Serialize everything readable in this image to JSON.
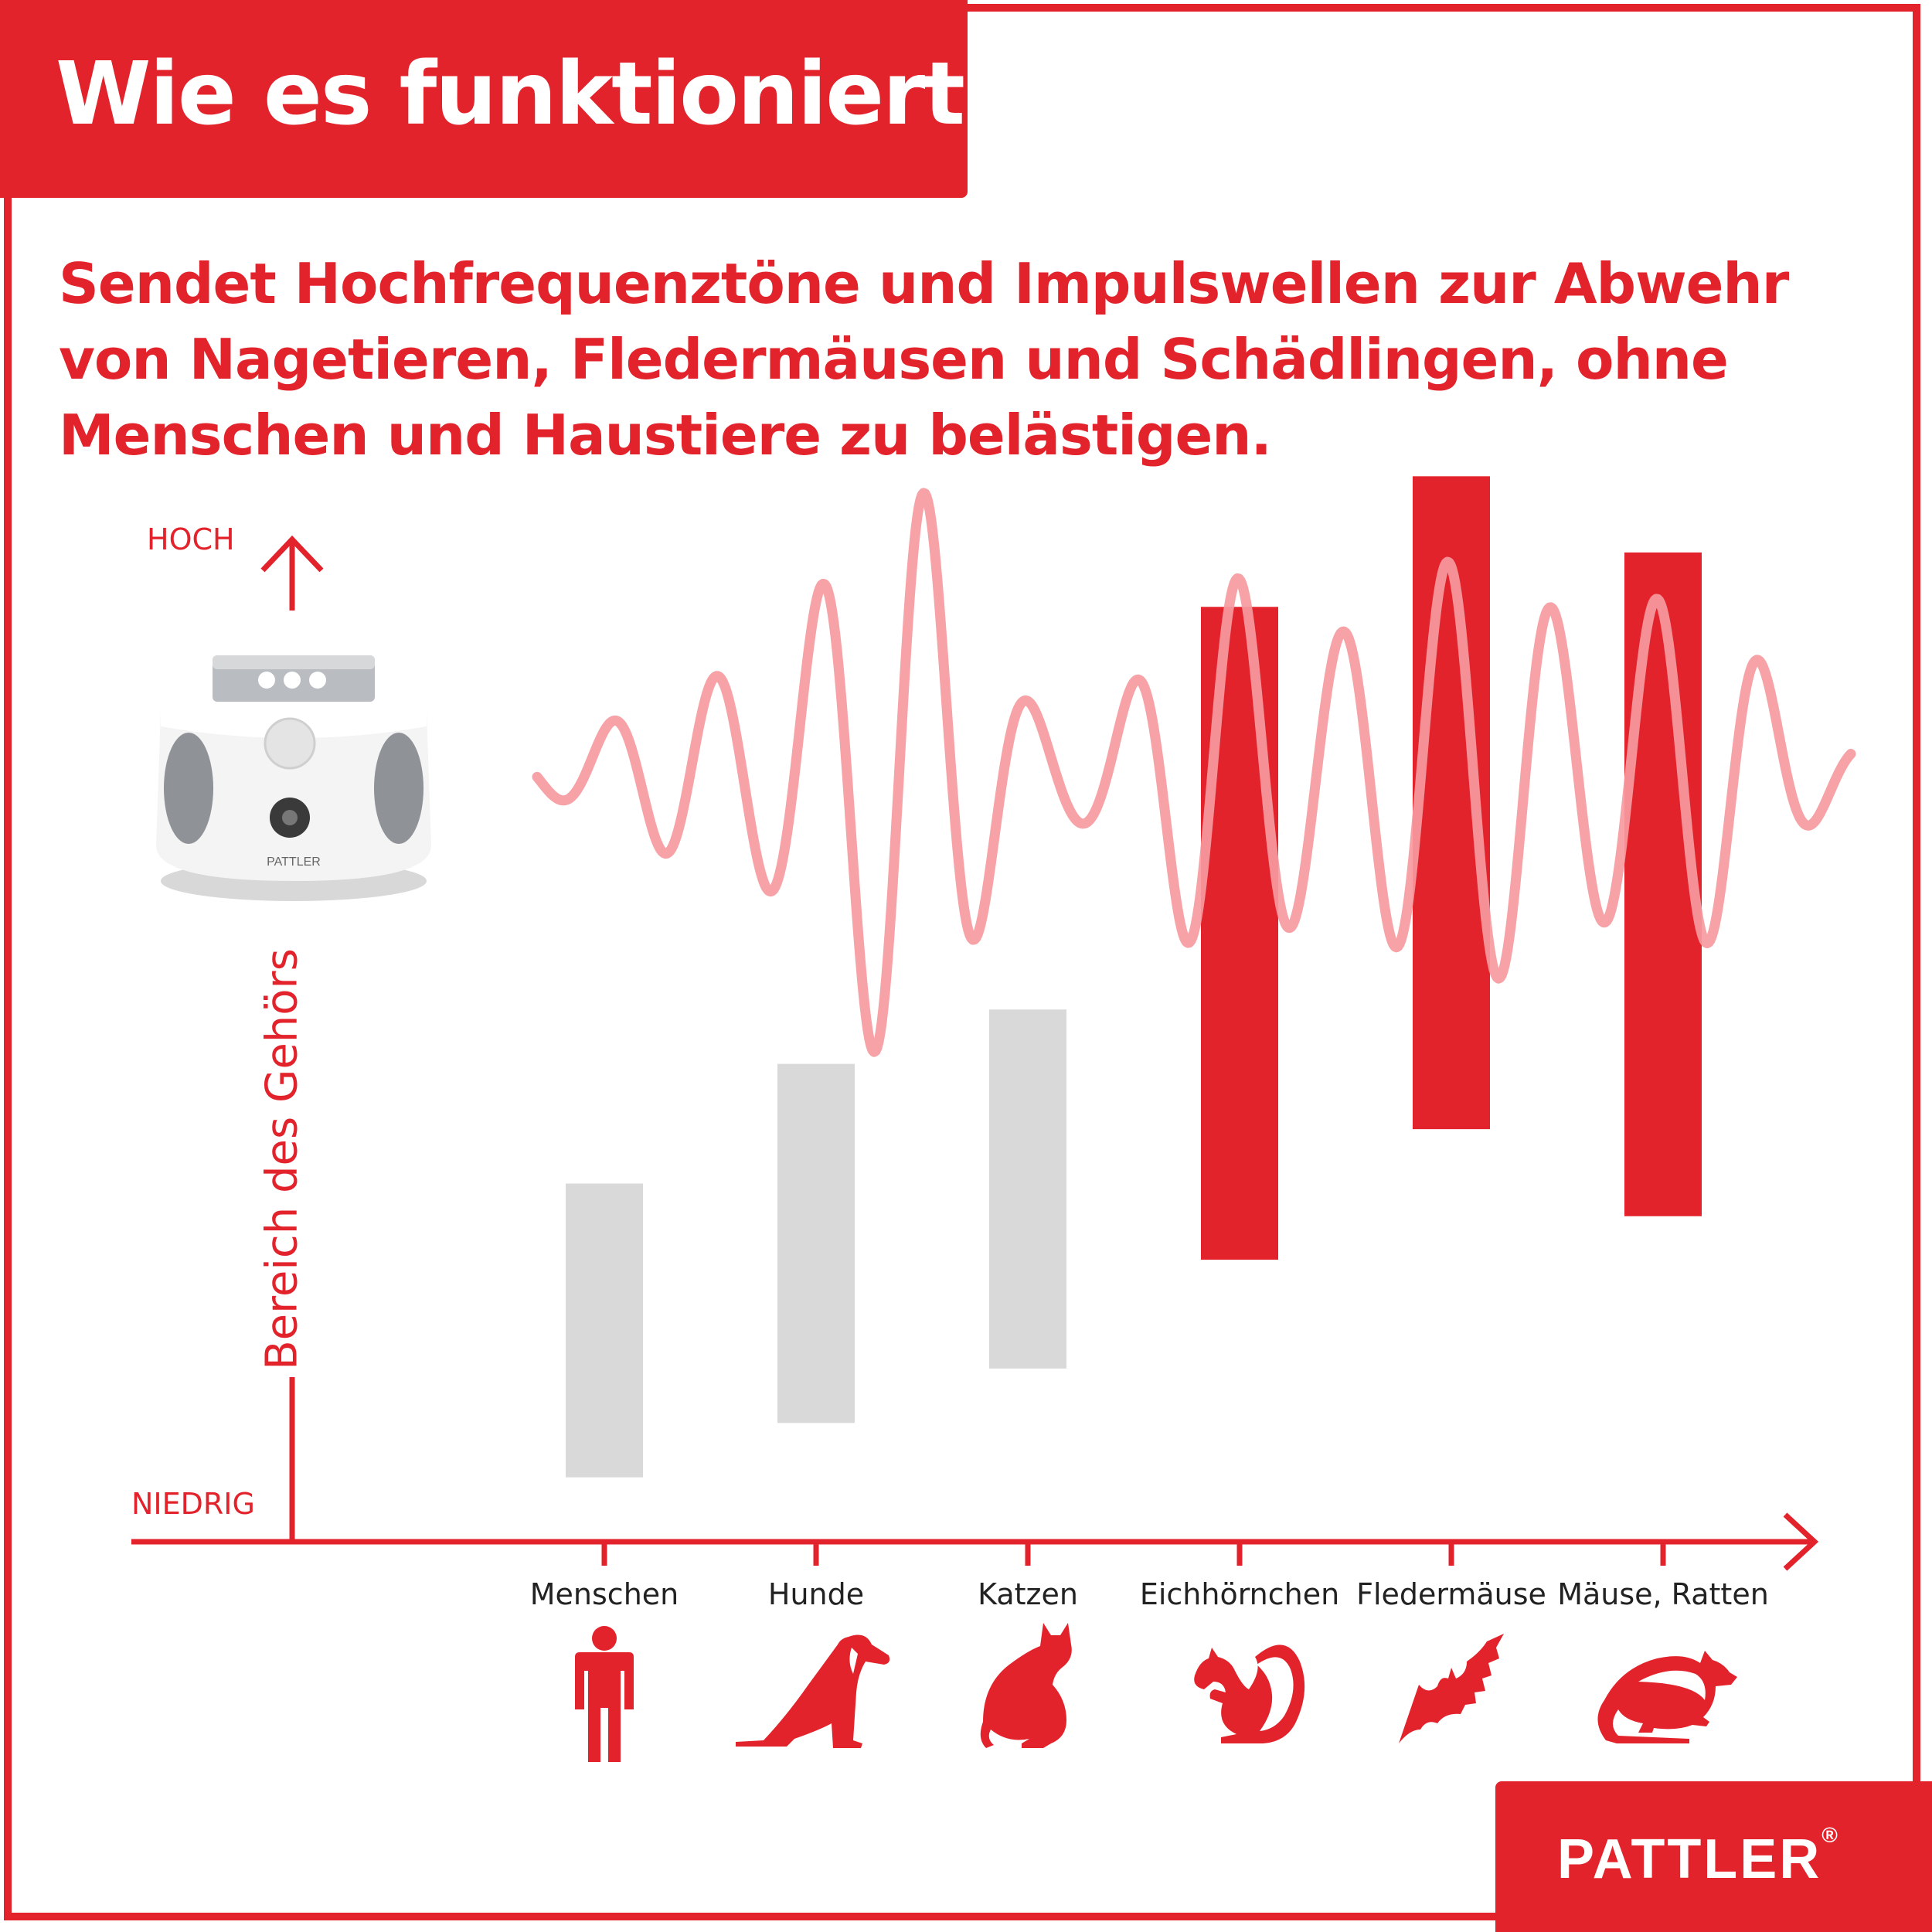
{
  "header": {
    "title": "Wie es funktioniert",
    "subtitle": "Sendet Hochfrequenztöne und Impulswellen zur Abwehr von Nagetieren, Fledermäusen und Schädlingen, ohne Menschen und Haustiere zu belästigen."
  },
  "brand": {
    "name": "PATTLER",
    "mark": "®"
  },
  "device": {
    "label": "PATTLER"
  },
  "colors": {
    "accent": "#e3232b",
    "wave": "#f59a9f",
    "inaudible_bar": "#e3232b",
    "audible_bar": "#d9d9d9"
  },
  "chart_data": {
    "type": "bar",
    "subtype": "floating-range",
    "ylabel": "Bereich des Gehörs",
    "y_high_label": "HOCH",
    "y_low_label": "NIEDRIG",
    "ylim": [
      0,
      100
    ],
    "categories": [
      "Menschen",
      "Hunde",
      "Katzen",
      "Eichhörnchen",
      "Fledermäuse",
      "Mäuse, Ratten"
    ],
    "icons": [
      "person-icon",
      "dog-icon",
      "cat-icon",
      "squirrel-icon",
      "bat-icon",
      "rat-icon"
    ],
    "ranges": [
      {
        "low": 4,
        "high": 31
      },
      {
        "low": 9,
        "high": 42
      },
      {
        "low": 14,
        "high": 47
      },
      {
        "low": 24,
        "high": 84
      },
      {
        "low": 36,
        "high": 96
      },
      {
        "low": 28,
        "high": 89
      }
    ],
    "reached_by_device": [
      false,
      false,
      false,
      true,
      true,
      true
    ],
    "grid": false,
    "legend": "none"
  }
}
